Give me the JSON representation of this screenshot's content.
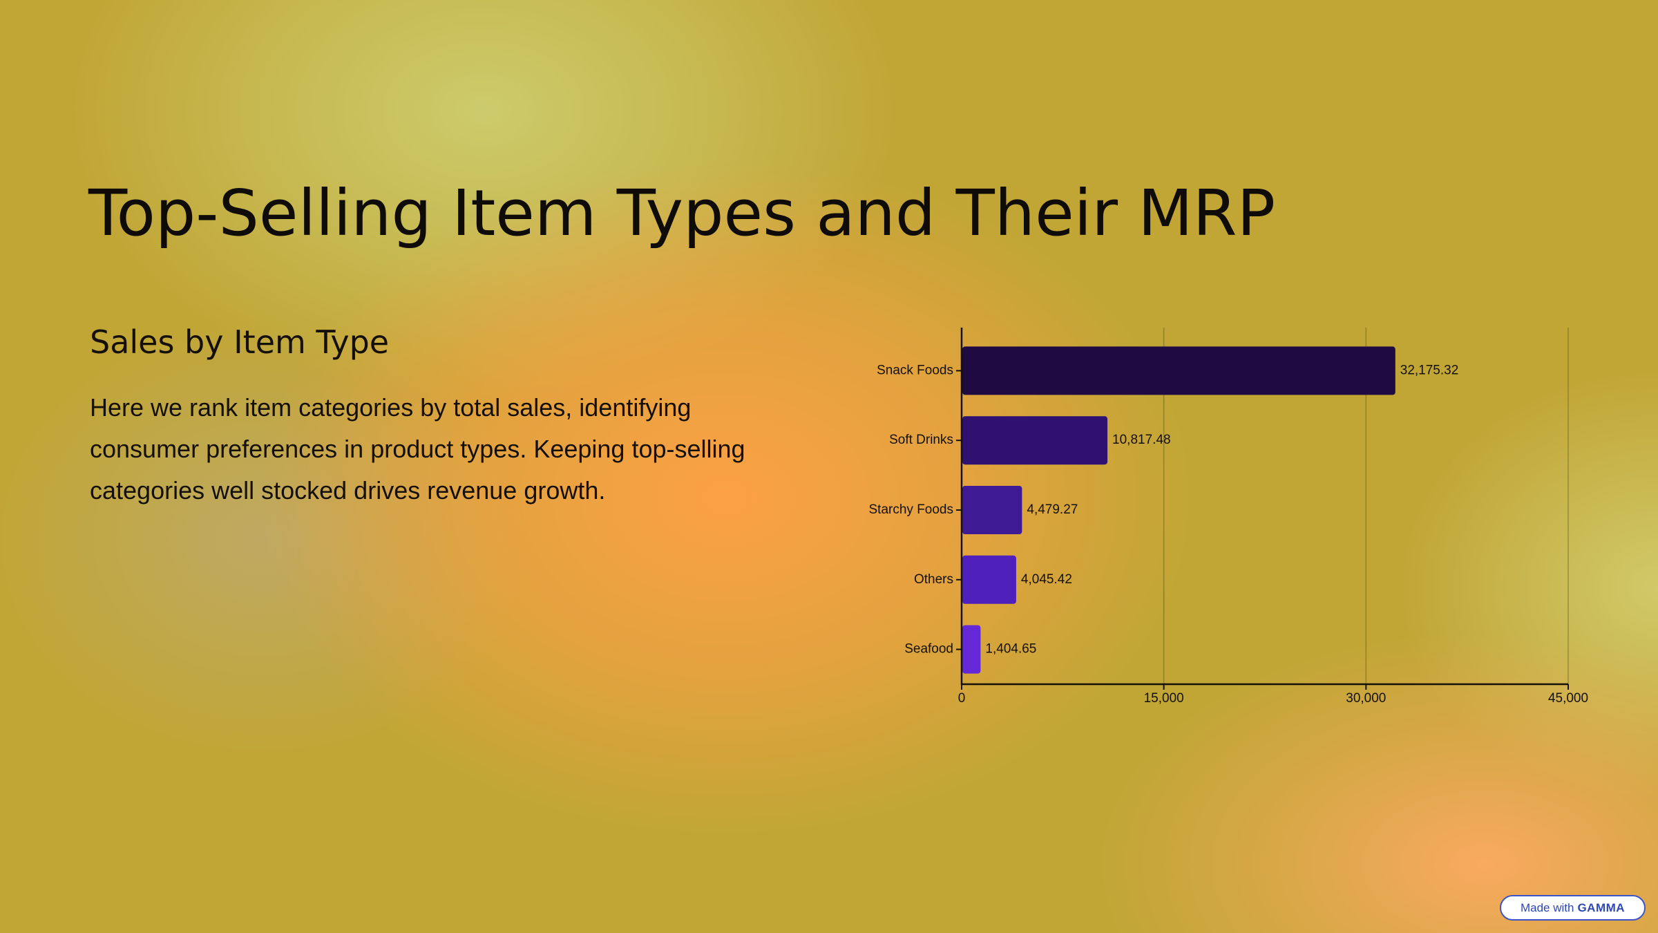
{
  "slide": {
    "title": "Top-Selling Item Types and Their MRP",
    "heading": "Sales by Item Type",
    "body": "Here we rank item categories by total sales, identifying consumer preferences in product types. Keeping top-selling categories well stocked drives revenue growth."
  },
  "badge": {
    "prefix": "Made with",
    "brand": "GAMMA"
  },
  "chart_data": {
    "type": "bar",
    "orientation": "horizontal",
    "categories": [
      "Snack Foods",
      "Soft Drinks",
      "Starchy Foods",
      "Others",
      "Seafood"
    ],
    "values": [
      32175.32,
      10817.48,
      4479.27,
      4045.42,
      1404.65
    ],
    "value_labels": [
      "32,175.32",
      "10,817.48",
      "4,479.27",
      "4,045.42",
      "1,404.65"
    ],
    "colors": [
      "#1f0a42",
      "#2f1170",
      "#3e1a95",
      "#5020bd",
      "#6428d6"
    ],
    "xlim": [
      0,
      45000
    ],
    "xticks": [
      0,
      15000,
      30000,
      45000
    ],
    "xtick_labels": [
      "0",
      "15,000",
      "30,000",
      "45,000"
    ],
    "grid": true,
    "legend": "none"
  }
}
